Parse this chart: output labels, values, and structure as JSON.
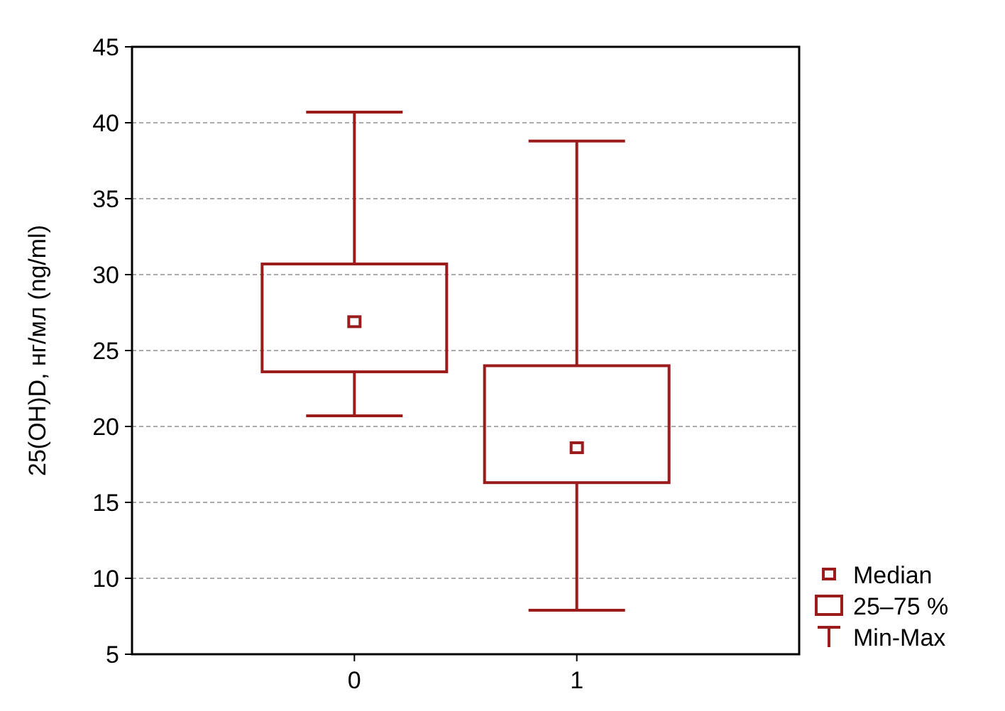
{
  "chart_data": {
    "type": "box",
    "ylabel": "25(OH)D, нг/мл (ng/ml)",
    "categories": [
      "0",
      "1"
    ],
    "boxes": [
      {
        "low": 20.7,
        "q1": 23.6,
        "median": 26.9,
        "q3": 30.7,
        "high": 40.7
      },
      {
        "low": 7.9,
        "q1": 16.3,
        "median": 18.6,
        "q3": 24.0,
        "high": 38.8
      }
    ],
    "color": "#9b1c1c",
    "ylim": [
      5,
      45
    ],
    "yticks": [
      5,
      10,
      15,
      20,
      25,
      30,
      35,
      40,
      45
    ],
    "grid": "y",
    "annotations": [
      "Median",
      "25–75 %",
      "Min-Max"
    ]
  }
}
